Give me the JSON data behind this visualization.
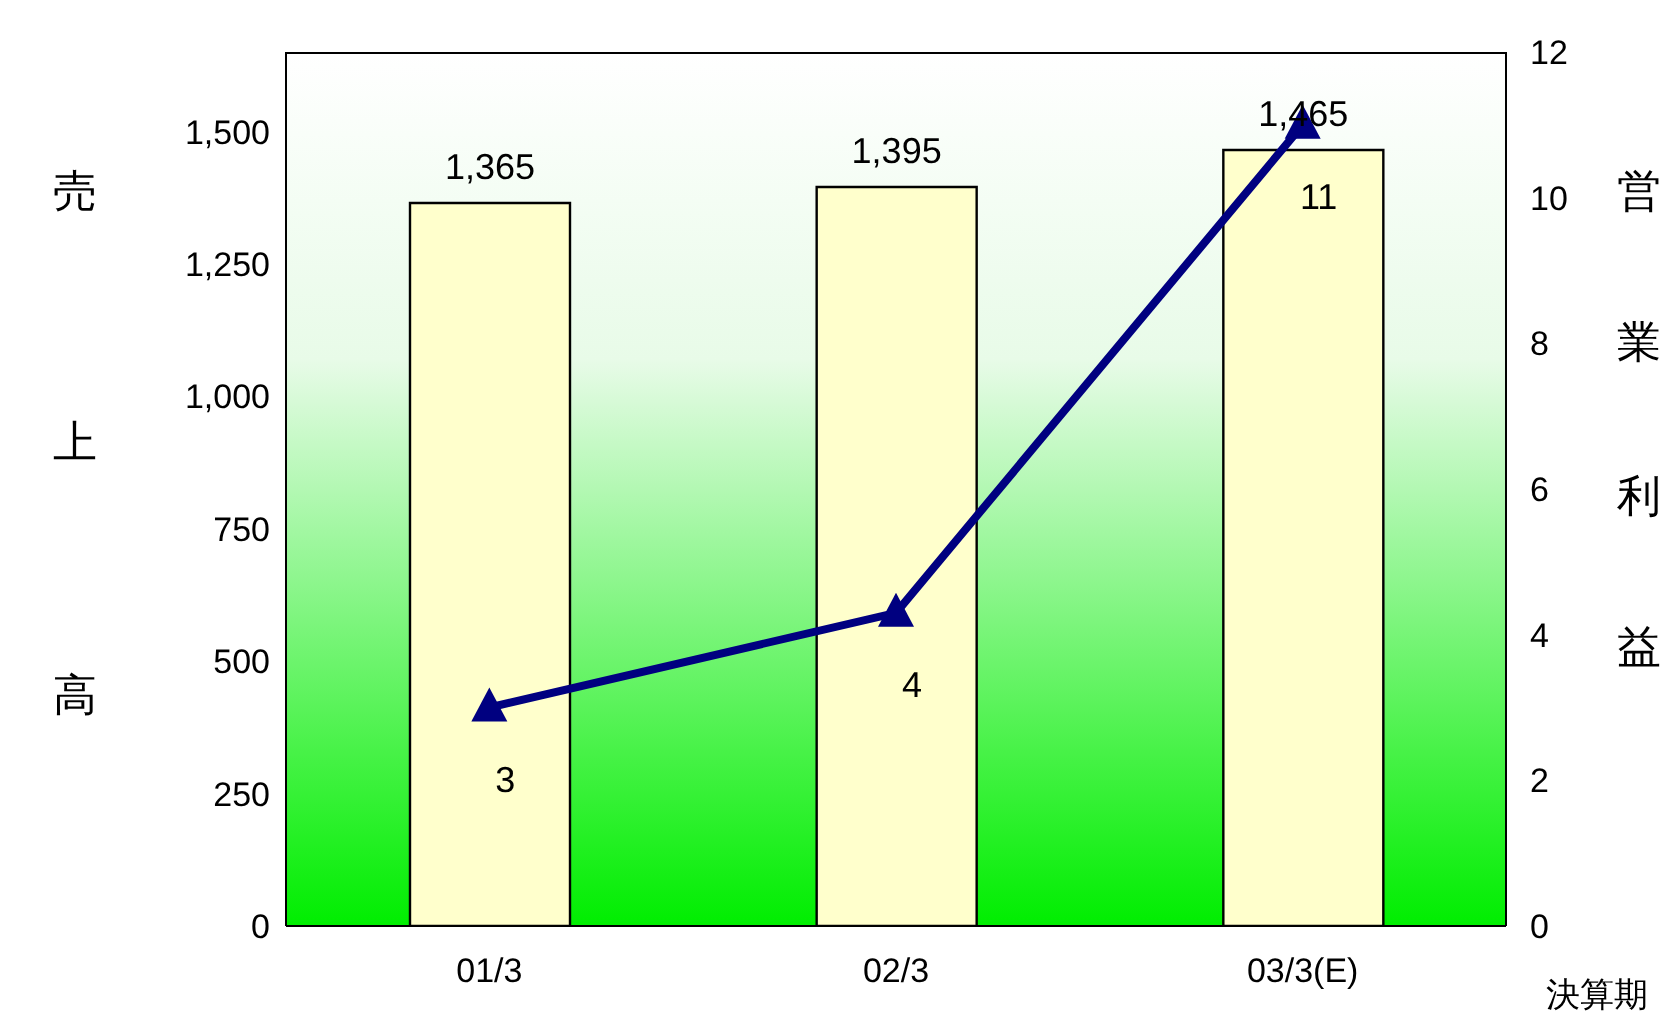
{
  "chart_data": {
    "type": "bar",
    "xlabel": "決算期",
    "ylabel": "売上高",
    "y2label": "営業利益",
    "categories": [
      "01/3",
      "02/3",
      "03/3(E)"
    ],
    "series": [
      {
        "color": "#ffffcc",
        "values": [
          1365,
          1395,
          1465
        ],
        "value_labels": [
          "1,365",
          "1,395",
          "1,465"
        ]
      },
      {
        "type": "line",
        "axis": "y2",
        "color": "#000080",
        "values": [
          3,
          4.3,
          11
        ],
        "value_labels": [
          "3",
          "4",
          "11"
        ],
        "marker": "triangle"
      }
    ],
    "ylim": [
      0,
      1650
    ],
    "yticks": [
      0,
      250,
      500,
      750,
      {
        "value": 1000,
        "label": "1,000"
      },
      {
        "value": 1250,
        "label": "1,250"
      },
      {
        "value": 1500,
        "label": "1,500"
      }
    ],
    "y2lim": [
      0,
      12
    ],
    "y2ticks": [
      0,
      2,
      4,
      6,
      8,
      10,
      12
    ]
  }
}
